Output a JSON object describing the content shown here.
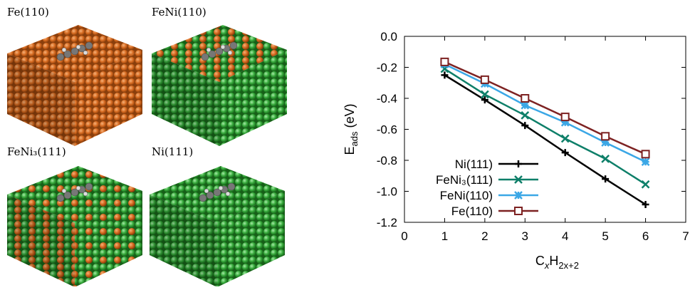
{
  "images": [
    {
      "label": "Fe(110)"
    },
    {
      "label": "FeNi(110)"
    },
    {
      "label": "FeNi₃(111)"
    },
    {
      "label": "Ni(111)"
    }
  ],
  "chart_data": {
    "type": "line",
    "x_label": [
      "C",
      "x",
      "H",
      "2x+2"
    ],
    "y_label": [
      "E",
      "ads",
      " (eV)"
    ],
    "x": [
      1,
      2,
      3,
      4,
      5,
      6
    ],
    "xlim": [
      0,
      7
    ],
    "xticks": [
      0,
      1,
      2,
      3,
      4,
      5,
      6,
      7
    ],
    "ylim": [
      -1.2,
      0.0
    ],
    "yticks": [
      {
        "value": 0.0,
        "label": "0.0"
      },
      -0.2,
      -0.4,
      -0.6,
      -0.8,
      {
        "value": -1.0,
        "label": "-1.0"
      },
      -1.2
    ],
    "legend": "lower left",
    "series": [
      {
        "name": "Ni(111)",
        "color": "#000000",
        "marker": "plus",
        "values": [
          -0.25,
          -0.41,
          -0.575,
          -0.75,
          -0.92,
          -1.085
        ]
      },
      {
        "name": "FeNi₃(111)",
        "color": "#0e7f69",
        "marker": "x",
        "values": [
          -0.21,
          -0.375,
          -0.51,
          -0.66,
          -0.79,
          -0.955
        ]
      },
      {
        "name": "FeNi(110)",
        "color": "#3ba7e6",
        "marker": "star",
        "values": [
          -0.18,
          -0.305,
          -0.445,
          -0.555,
          -0.685,
          -0.81
        ]
      },
      {
        "name": "Fe(110)",
        "color": "#7d2222",
        "marker": "square",
        "values": [
          -0.165,
          -0.28,
          -0.4,
          -0.52,
          -0.645,
          -0.76
        ]
      }
    ]
  }
}
